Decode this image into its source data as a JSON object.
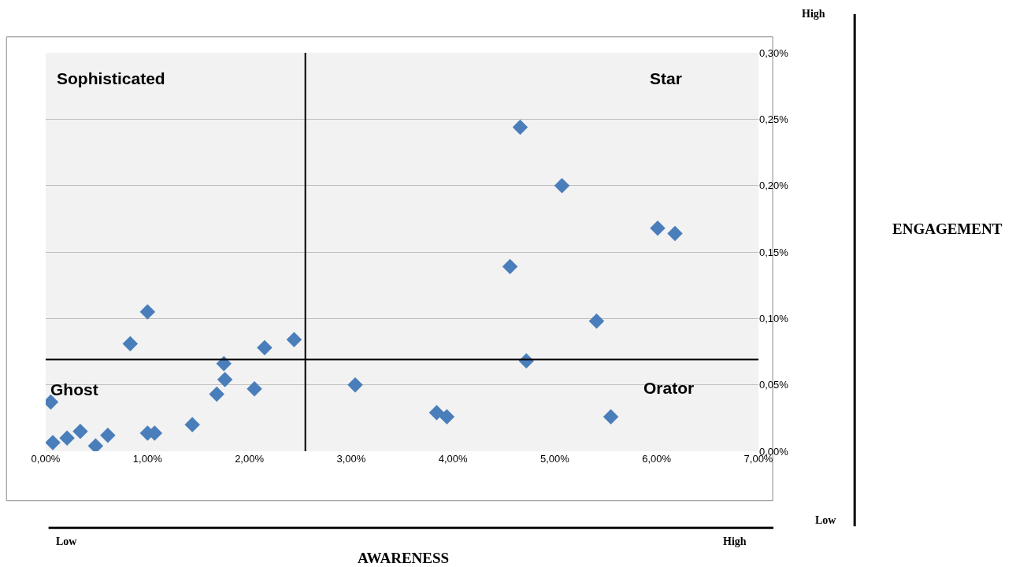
{
  "chart_data": {
    "type": "scatter",
    "x": [
      0.05,
      0.07,
      0.21,
      0.34,
      0.49,
      0.61,
      0.83,
      1.0,
      1.0,
      1.07,
      1.44,
      1.68,
      1.75,
      1.76,
      2.05,
      2.15,
      2.44,
      3.04,
      3.84,
      3.94,
      4.56,
      4.66,
      4.72,
      5.07,
      5.41,
      5.55,
      6.01,
      6.18
    ],
    "series": [
      {
        "color": "#4a7ebb",
        "values": [
          0.037,
          0.0065,
          0.01,
          0.015,
          0.004,
          0.012,
          0.081,
          0.105,
          0.0136,
          0.0136,
          0.02,
          0.043,
          0.066,
          0.054,
          0.047,
          0.078,
          0.084,
          0.05,
          0.029,
          0.026,
          0.139,
          0.244,
          0.068,
          0.2,
          0.098,
          0.026,
          0.168,
          0.164
        ]
      }
    ],
    "marker": "diamond",
    "grid": "y",
    "legend": false,
    "xlim": [
      0,
      7
    ],
    "ylim": [
      0,
      0.3
    ],
    "xticks": [
      {
        "value": 0,
        "label": "0,00%"
      },
      {
        "value": 1,
        "label": "1,00%"
      },
      {
        "value": 2,
        "label": "2,00%"
      },
      {
        "value": 3,
        "label": "3,00%"
      },
      {
        "value": 4,
        "label": "4,00%"
      },
      {
        "value": 5,
        "label": "5,00%"
      },
      {
        "value": 6,
        "label": "6,00%"
      },
      {
        "value": 7,
        "label": "7,00%"
      }
    ],
    "yticks": [
      {
        "value": 0,
        "label": "0,00%"
      },
      {
        "value": 0.05,
        "label": "0,05%"
      },
      {
        "value": 0.1,
        "label": "0,10%"
      },
      {
        "value": 0.15,
        "label": "0,15%"
      },
      {
        "value": 0.2,
        "label": "0,20%"
      },
      {
        "value": 0.25,
        "label": "0,25%"
      },
      {
        "value": 0.3,
        "label": "0,30%"
      }
    ],
    "ref_lines": [
      {
        "axis": "x",
        "value": 2.55,
        "color": "#000000"
      },
      {
        "axis": "y",
        "value": 0.069,
        "color": "#000000"
      }
    ],
    "annotations": [
      "Sophisticated",
      "Star",
      "Ghost",
      "Orator",
      "High",
      "Low",
      "Low",
      "High",
      "AWARENESS",
      "ENGAGEMENT"
    ]
  }
}
